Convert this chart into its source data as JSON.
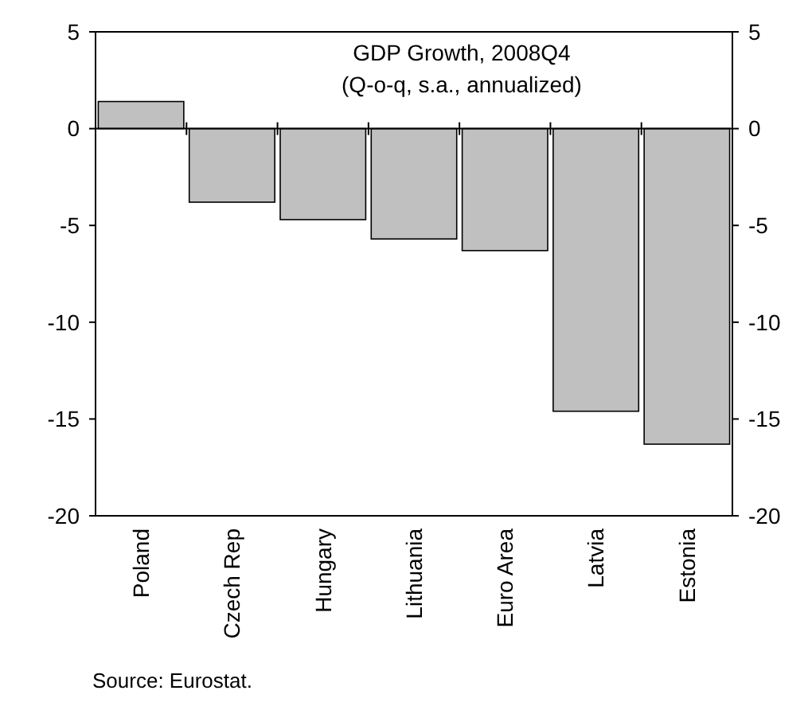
{
  "chart_data": {
    "type": "bar",
    "title": "GDP Growth, 2008Q4",
    "subtitle": "(Q-o-q, s.a., annualized)",
    "categories": [
      "Poland",
      "Czech Rep",
      "Hungary",
      "Lithuania",
      "Euro Area",
      "Latvia",
      "Estonia"
    ],
    "values": [
      1.4,
      -3.8,
      -4.7,
      -5.7,
      -6.3,
      -14.6,
      -16.3
    ],
    "color": "#c0c0c0",
    "ylim": [
      -20,
      5
    ],
    "yticks": [
      -20,
      -15,
      -10,
      -5,
      0,
      5
    ],
    "y2lim": [
      -20,
      5
    ],
    "y2ticks": [
      -20,
      -15,
      -10,
      -5,
      0,
      5
    ],
    "annotations": [
      "Source: Eurostat."
    ]
  }
}
